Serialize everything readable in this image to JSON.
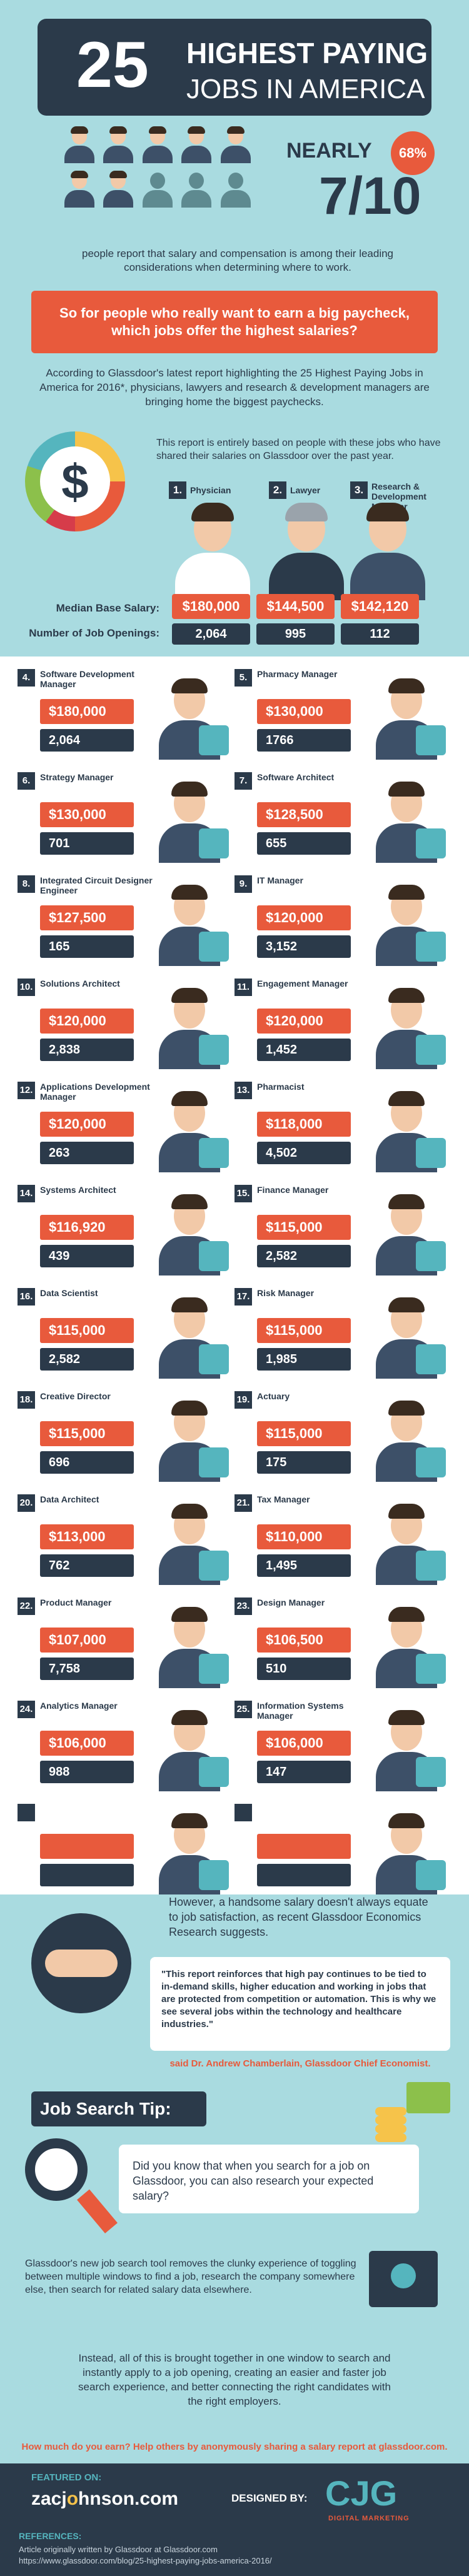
{
  "header": {
    "number": "25",
    "title_line1": "HIGHEST PAYING",
    "title_line2": "JOBS IN AMERICA",
    "nearly": "NEARLY",
    "percent": "68%",
    "ratio": "7/10",
    "people_text": "people report that salary and compensation is among their leading considerations when determining where to work.",
    "callout": "So for people who really want to earn a big paycheck, which jobs offer the highest salaries?",
    "according": "According to Glassdoor's latest report highlighting the 25 Highest Paying Jobs in America for 2016*, physicians, lawyers and research & development managers are bringing home the biggest paychecks.",
    "report_note": "This report is entirely based on people with these jobs who have shared their salaries on Glassdoor over the past year.",
    "dollar": "$",
    "median_label": "Median Base Salary:",
    "openings_label": "Number of Job Openings:"
  },
  "top3": [
    {
      "rank": "1.",
      "title": "Physician",
      "salary": "$180,000",
      "openings": "2,064"
    },
    {
      "rank": "2.",
      "title": "Lawyer",
      "salary": "$144,500",
      "openings": "995"
    },
    {
      "rank": "3.",
      "title": "Research & Development Manager",
      "salary": "$142,120",
      "openings": "112"
    }
  ],
  "jobs": [
    {
      "rank": "4.",
      "title": "Software Development Manager",
      "salary": "$180,000",
      "openings": "2,064"
    },
    {
      "rank": "5.",
      "title": "Pharmacy Manager",
      "salary": "$130,000",
      "openings": "1766"
    },
    {
      "rank": "6.",
      "title": "Strategy Manager",
      "salary": "$130,000",
      "openings": "701"
    },
    {
      "rank": "7.",
      "title": "Software Architect",
      "salary": "$128,500",
      "openings": "655"
    },
    {
      "rank": "8.",
      "title": "Integrated Circuit Designer Engineer",
      "salary": "$127,500",
      "openings": "165"
    },
    {
      "rank": "9.",
      "title": "IT Manager",
      "salary": "$120,000",
      "openings": "3,152"
    },
    {
      "rank": "10.",
      "title": "Solutions Architect",
      "salary": "$120,000",
      "openings": "2,838"
    },
    {
      "rank": "11.",
      "title": "Engagement Manager",
      "salary": "$120,000",
      "openings": "1,452"
    },
    {
      "rank": "12.",
      "title": "Applications Development Manager",
      "salary": "$120,000",
      "openings": "263"
    },
    {
      "rank": "13.",
      "title": "Pharmacist",
      "salary": "$118,000",
      "openings": "4,502"
    },
    {
      "rank": "14.",
      "title": "Systems Architect",
      "salary": "$116,920",
      "openings": "439"
    },
    {
      "rank": "15.",
      "title": "Finance Manager",
      "salary": "$115,000",
      "openings": "2,582"
    },
    {
      "rank": "16.",
      "title": "Data Scientist",
      "salary": "$115,000",
      "openings": "2,582"
    },
    {
      "rank": "17.",
      "title": "Risk Manager",
      "salary": "$115,000",
      "openings": "1,985"
    },
    {
      "rank": "18.",
      "title": "Creative Director",
      "salary": "$115,000",
      "openings": "696"
    },
    {
      "rank": "19.",
      "title": "Actuary",
      "salary": "$115,000",
      "openings": "175"
    },
    {
      "rank": "20.",
      "title": "Data Architect",
      "salary": "$113,000",
      "openings": "762"
    },
    {
      "rank": "21.",
      "title": "Tax Manager",
      "salary": "$110,000",
      "openings": "1,495"
    },
    {
      "rank": "22.",
      "title": "Product Manager",
      "salary": "$107,000",
      "openings": "7,758"
    },
    {
      "rank": "23.",
      "title": "Design Manager",
      "salary": "$106,500",
      "openings": "510"
    },
    {
      "rank": "24.",
      "title": "Analytics Manager",
      "salary": "$106,000",
      "openings": "988"
    },
    {
      "rank": "25.",
      "title": "Information Systems Manager",
      "salary": "$106,000",
      "openings": "147"
    }
  ],
  "footer": {
    "however": "However, a handsome salary doesn't always equate to job satisfaction, as recent Glassdoor Economics Research suggests.",
    "quote": "\"This report reinforces that high pay continues to be tied to in-demand skills, higher education and working in jobs that are protected from competition or automation. This is why we see several jobs within the technology and healthcare industries.\"",
    "said": "said Dr. Andrew Chamberlain, Glassdoor Chief Economist.",
    "tip_title": "Job Search Tip:",
    "tip_text": "Did you know that when you search for a job on Glassdoor, you can also research your expected salary?",
    "glassdoor_text": "Glassdoor's new job search tool removes the clunky experience of toggling between multiple windows to find a job, research the company somewhere else, then search for related salary data elsewhere.",
    "instead": "Instead, all of this is brought together in one window to search and instantly apply to a job opening, creating an easier and faster job search experience, and better connecting the right candidates with the right employers.",
    "how_much": "How much do you earn? Help others by anonymously sharing a salary report at glassdoor.com.",
    "featured_on": "FEATURED ON:",
    "zac_pre": "zacj",
    "zac_o": "o",
    "zac_post": "hnson.com",
    "designed_by": "DESIGNED BY:",
    "cjg": "CJG",
    "cjg_sub": "DIGITAL MARKETING",
    "references": "REFERENCES:",
    "ref1": "Article originally written by Glassdoor at Glassdoor.com",
    "ref2": "https://www.glassdoor.com/blog/25-highest-paying-jobs-america-2016/"
  }
}
